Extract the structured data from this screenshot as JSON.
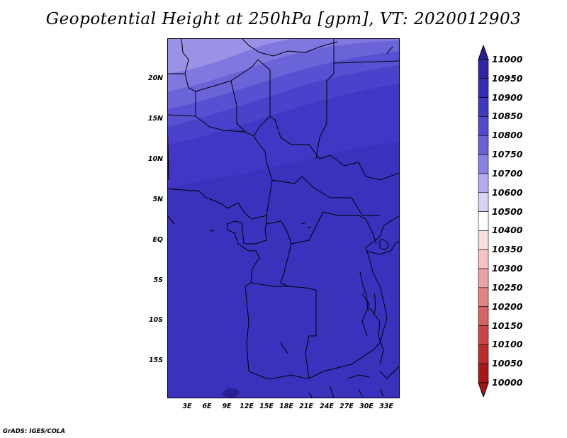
{
  "title": "Geopotential Height at 250hPa [gpm], VT: 2020012903",
  "credit": "GrADS: IGES/COLA",
  "lat_labels": [
    "20N",
    "15N",
    "10N",
    "5N",
    "EQ",
    "5S",
    "10S",
    "15S"
  ],
  "lon_labels": [
    "3E",
    "6E",
    "9E",
    "12E",
    "15E",
    "18E",
    "21E",
    "24E",
    "27E",
    "30E",
    "33E"
  ],
  "colorbar": {
    "levels": [
      "11000",
      "10950",
      "10900",
      "10850",
      "10800",
      "10750",
      "10700",
      "10600",
      "10500",
      "10400",
      "10350",
      "10300",
      "10250",
      "10200",
      "10150",
      "10100",
      "10050",
      "10000"
    ],
    "colors": [
      "#2a1f95",
      "#2e25a8",
      "#342cb6",
      "#3e39c3",
      "#5048ce",
      "#6a60d8",
      "#8a80e5",
      "#b3acf0",
      "#d6d3f6",
      "#ffffff",
      "#fbdede",
      "#f6c2c2",
      "#eda2a2",
      "#e38282",
      "#d86262",
      "#cc4444",
      "#bd2a2a",
      "#a81616"
    ]
  },
  "map": {
    "field_bands": [
      "#3a31bd",
      "#4038c4",
      "#4a42ca",
      "#5850d2",
      "#6b63d8",
      "#8077df",
      "#9a92e6"
    ],
    "border_color": "#000000"
  }
}
